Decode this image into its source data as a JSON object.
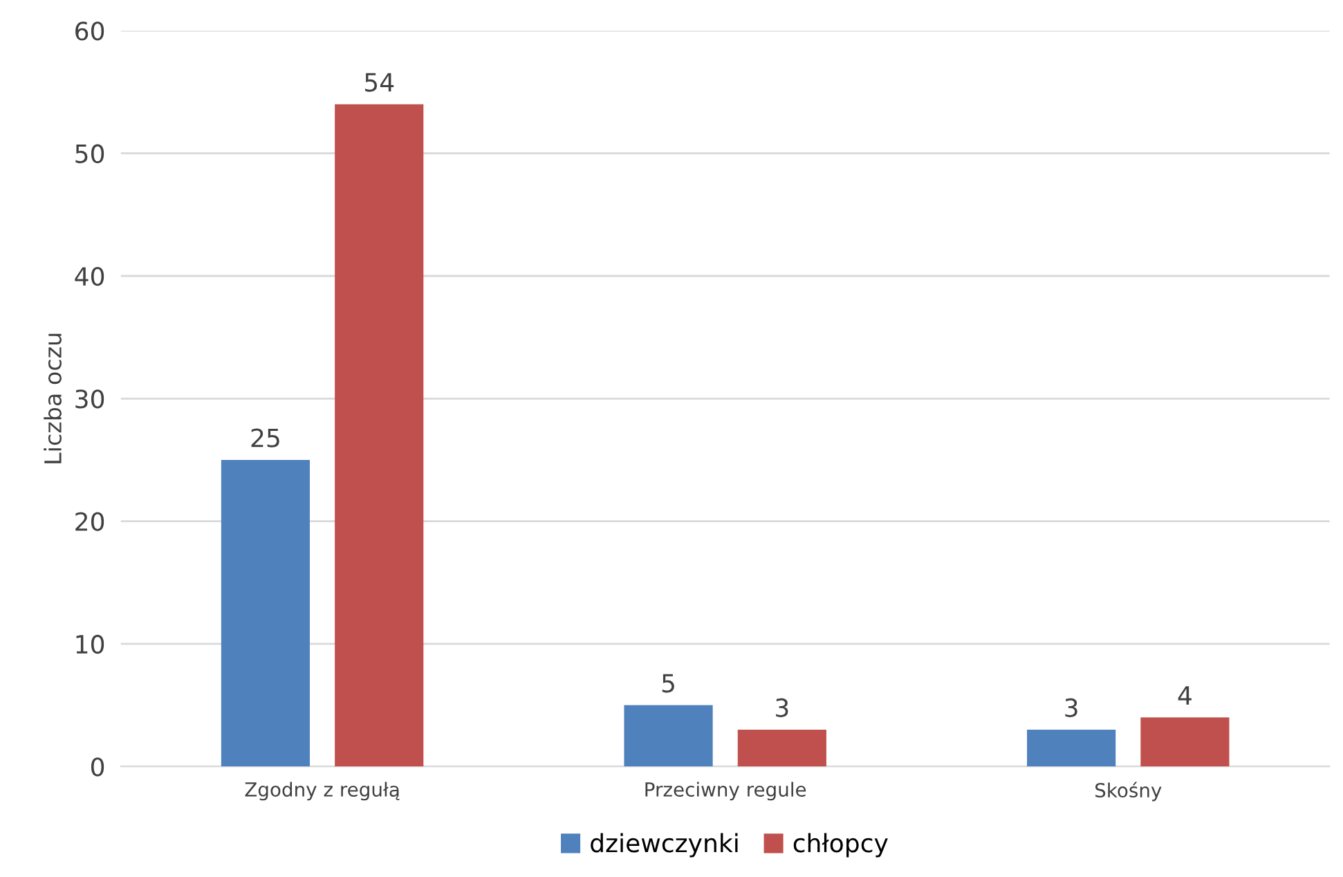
{
  "chart_data": {
    "type": "bar",
    "ylabel": "Liczba oczu",
    "categories": [
      "Zgodny z regułą",
      "Przeciwny regule",
      "Skośny"
    ],
    "series": [
      {
        "name": "dziewczynki",
        "color": "#4f81bd",
        "values": [
          25,
          5,
          3
        ]
      },
      {
        "name": "chłopcy",
        "color": "#c0504d",
        "values": [
          54,
          3,
          4
        ]
      }
    ],
    "ylim": [
      0,
      60
    ],
    "yticks": [
      0,
      10,
      20,
      30,
      40,
      50,
      60
    ],
    "grid": "y",
    "legend": "bottom",
    "data_labels": true
  }
}
